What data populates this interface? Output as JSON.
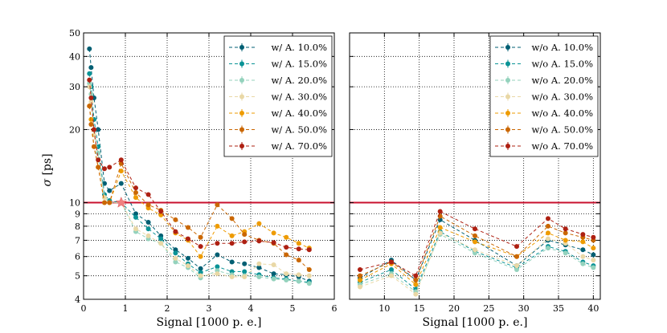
{
  "chart_data": {
    "type": "line",
    "y_scale": "log",
    "ylabel_symbol": "σ",
    "ylabel_unit": "[ps]",
    "ylim": [
      4,
      50
    ],
    "y_ticks": [
      4,
      5,
      6,
      7,
      8,
      9,
      10,
      20,
      30,
      40,
      50
    ],
    "reference_line": {
      "y": 10,
      "color": "#c8102e"
    },
    "grid": true,
    "panels": [
      {
        "id": "left",
        "xlabel": "Signal [1000 p. e.]",
        "xlim": [
          0,
          6
        ],
        "x_ticks": [
          0,
          1,
          2,
          3,
          4,
          5,
          6
        ],
        "legend_position": "top-right",
        "marker_star": {
          "x": 0.9,
          "y": 10
        },
        "x": [
          0.14,
          0.18,
          0.25,
          0.35,
          0.5,
          0.62,
          0.9,
          1.25,
          1.55,
          1.85,
          2.2,
          2.5,
          2.8,
          3.2,
          3.55,
          3.85,
          4.2,
          4.55,
          4.85,
          5.15,
          5.4
        ],
        "series": [
          {
            "name": "w/ A. 10.0%",
            "color": "#005f73",
            "values": [
              43,
              36,
              27,
              20,
              12,
              11.2,
              12,
              9,
              8.3,
              7.3,
              6.4,
              5.9,
              5.35,
              6.1,
              5.7,
              5.6,
              5.4,
              5.1,
              5.05,
              4.95,
              4.75
            ]
          },
          {
            "name": "w/ A. 15.0%",
            "color": "#0a9396",
            "values": [
              34,
              30,
              22,
              17,
              10.8,
              10.2,
              10,
              8.7,
              7.8,
              7.1,
              6.2,
              5.6,
              5.15,
              5.45,
              5.2,
              5.2,
              5.05,
              4.9,
              4.85,
              4.75,
              4.7
            ]
          },
          {
            "name": "w/ A. 20.0%",
            "color": "#94d2bd",
            "values": [
              31,
              28,
              20,
              16,
              10.5,
              10,
              10,
              7.6,
              7.1,
              6.8,
              5.7,
              5.4,
              4.9,
              5.25,
              5.05,
              5.0,
              4.95,
              4.85,
              4.8,
              4.75,
              4.65
            ]
          },
          {
            "name": "w/ A. 30.0%",
            "color": "#e9d8a6",
            "values": [
              30,
              26,
              19,
              15,
              10.5,
              10,
              10,
              7.8,
              7.3,
              6.8,
              5.9,
              5.5,
              5.0,
              5.1,
              4.95,
              4.95,
              5.6,
              5.55,
              5.1,
              5.05,
              5.0
            ]
          },
          {
            "name": "w/ A. 40.0%",
            "color": "#ee9b00",
            "values": [
              25,
              22,
              17,
              14,
              10,
              10,
              13.5,
              10.5,
              9.5,
              8.9,
              7.5,
              7.0,
              6.0,
              8.0,
              7.3,
              7.6,
              8.2,
              7.5,
              7.2,
              6.8,
              6.5
            ]
          },
          {
            "name": "w/ A. 50.0%",
            "color": "#ca6702",
            "values": [
              25,
              21,
              17,
              14,
              10,
              10,
              14.5,
              11,
              9.8,
              9.3,
              8.5,
              7.9,
              7.2,
              9.8,
              8.6,
              7.4,
              7.0,
              6.8,
              6.1,
              5.8,
              5.3
            ]
          },
          {
            "name": "w/ A. 70.0%",
            "color": "#ae2012",
            "values": [
              32,
              27,
              20,
              15,
              13.8,
              14,
              15,
              11.5,
              10.8,
              9.2,
              7.6,
              7.1,
              6.6,
              6.8,
              6.8,
              6.9,
              6.95,
              6.85,
              6.55,
              6.45,
              6.4
            ]
          }
        ]
      },
      {
        "id": "right",
        "xlabel": "Signal [1000 p. e.]",
        "xlim": [
          5,
          41
        ],
        "x_ticks": [
          10,
          15,
          20,
          25,
          30,
          35,
          40
        ],
        "legend_position": "top-right",
        "x": [
          6.5,
          11,
          14.5,
          18,
          23,
          29,
          33.5,
          36,
          38.5,
          40
        ],
        "series": [
          {
            "name": "w/o A. 10.0%",
            "color": "#005f73",
            "values": [
              4.9,
              5.8,
              4.8,
              8.5,
              7.0,
              5.5,
              7.0,
              6.7,
              6.4,
              6.1
            ]
          },
          {
            "name": "w/o A. 15.0%",
            "color": "#0a9396",
            "values": [
              4.7,
              5.3,
              4.4,
              7.6,
              6.3,
              5.4,
              6.6,
              6.3,
              5.7,
              5.5
            ]
          },
          {
            "name": "w/o A. 20.0%",
            "color": "#94d2bd",
            "values": [
              4.6,
              5.1,
              4.3,
              7.4,
              6.2,
              5.3,
              6.5,
              6.2,
              5.6,
              5.4
            ]
          },
          {
            "name": "w/o A. 30.0%",
            "color": "#e9d8a6",
            "values": [
              4.5,
              5.0,
              4.2,
              7.5,
              6.4,
              5.5,
              7.1,
              6.8,
              6.0,
              5.8
            ]
          },
          {
            "name": "w/o A. 40.0%",
            "color": "#ee9b00",
            "values": [
              4.8,
              5.6,
              4.6,
              7.9,
              6.9,
              6.0,
              7.5,
              7.0,
              6.9,
              6.5
            ]
          },
          {
            "name": "w/o A. 50.0%",
            "color": "#ca6702",
            "values": [
              5.0,
              5.7,
              4.8,
              8.8,
              7.3,
              6.0,
              8.0,
              7.5,
              7.2,
              7.0
            ]
          },
          {
            "name": "w/o A. 70.0%",
            "color": "#ae2012",
            "values": [
              5.3,
              5.7,
              5.0,
              9.2,
              7.8,
              6.6,
              8.6,
              7.8,
              7.4,
              7.2
            ]
          }
        ]
      }
    ]
  }
}
